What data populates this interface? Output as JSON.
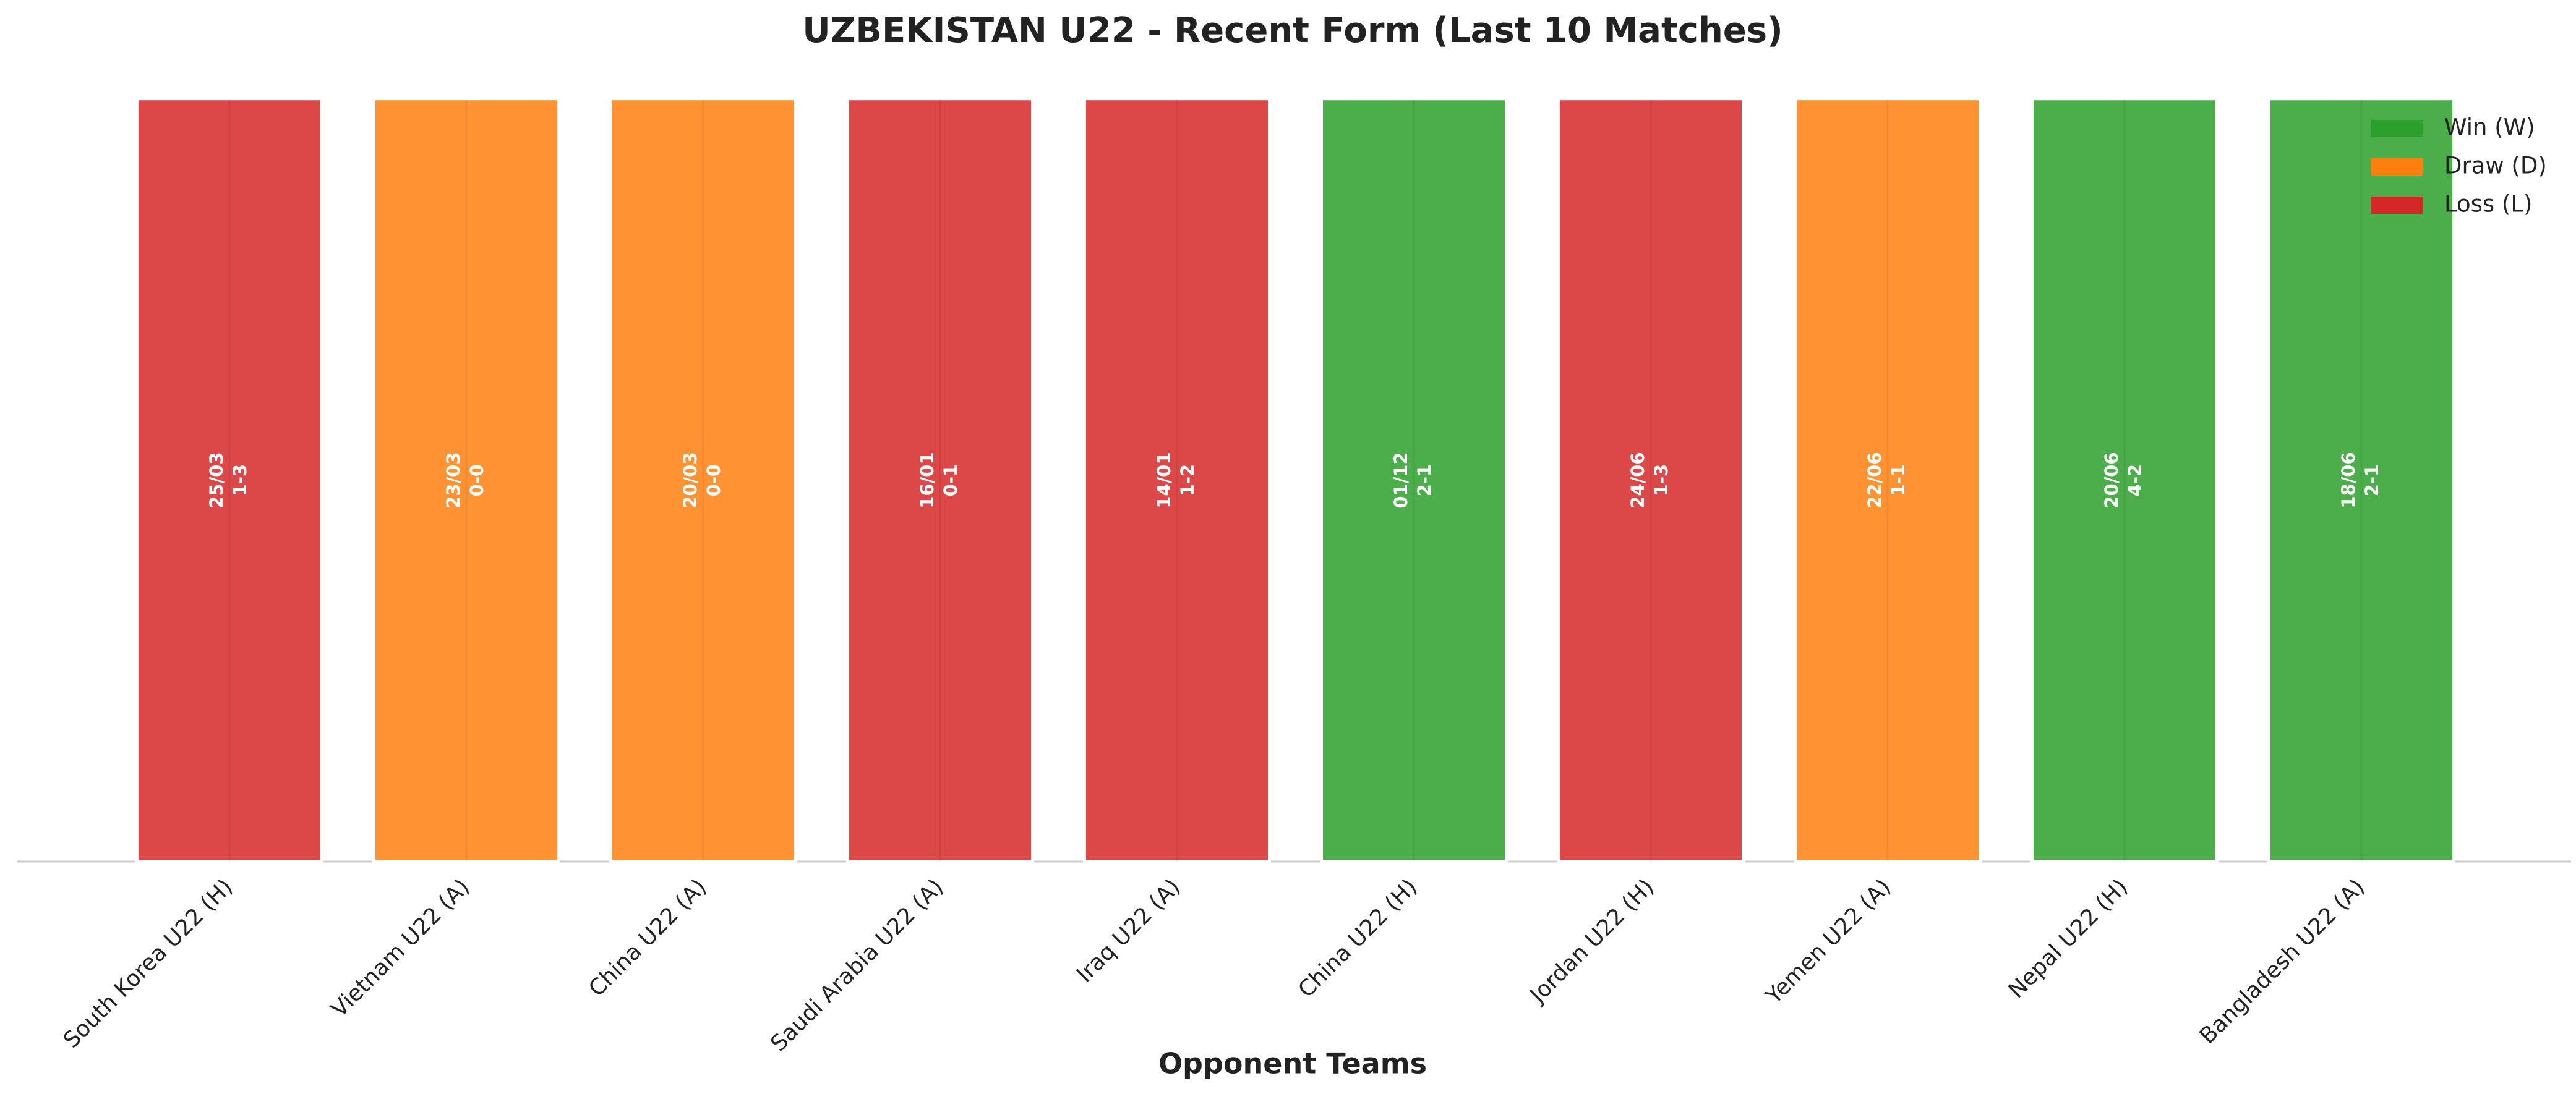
{
  "chart_data": {
    "type": "bar",
    "title": "UZBEKISTAN U22 - Recent Form (Last 10 Matches)",
    "x_label": "Opponent Teams",
    "categories": [
      "South Korea U22 (H)",
      "Vietnam U22 (A)",
      "China U22 (A)",
      "Saudi Arabia U22 (A)",
      "Iraq U22 (A)",
      "China U22 (H)",
      "Jordan U22 (H)",
      "Yemen U22 (A)",
      "Nepal U22 (H)",
      "Bangladesh U22 (A)"
    ],
    "dates": [
      "25/03",
      "23/03",
      "20/03",
      "16/01",
      "14/01",
      "01/12",
      "24/06",
      "22/06",
      "20/06",
      "18/06"
    ],
    "scores": [
      "1-3",
      "0-0",
      "0-0",
      "0-1",
      "1-2",
      "2-1",
      "1-3",
      "1-1",
      "4-2",
      "2-1"
    ],
    "series": [
      {
        "name": "Win (W)",
        "color": "#2ca02c",
        "values": [
          null,
          null,
          null,
          null,
          null,
          1,
          null,
          null,
          1,
          1
        ]
      },
      {
        "name": "Draw (D)",
        "color": "#ff7f0e",
        "values": [
          null,
          1,
          1,
          null,
          null,
          null,
          null,
          1,
          null,
          null
        ]
      },
      {
        "name": "Loss (L)",
        "color": "#d62728",
        "values": [
          1,
          null,
          null,
          1,
          1,
          null,
          1,
          null,
          null,
          null
        ]
      }
    ],
    "ylim": [
      0,
      1.05
    ],
    "legend": "upper right"
  }
}
